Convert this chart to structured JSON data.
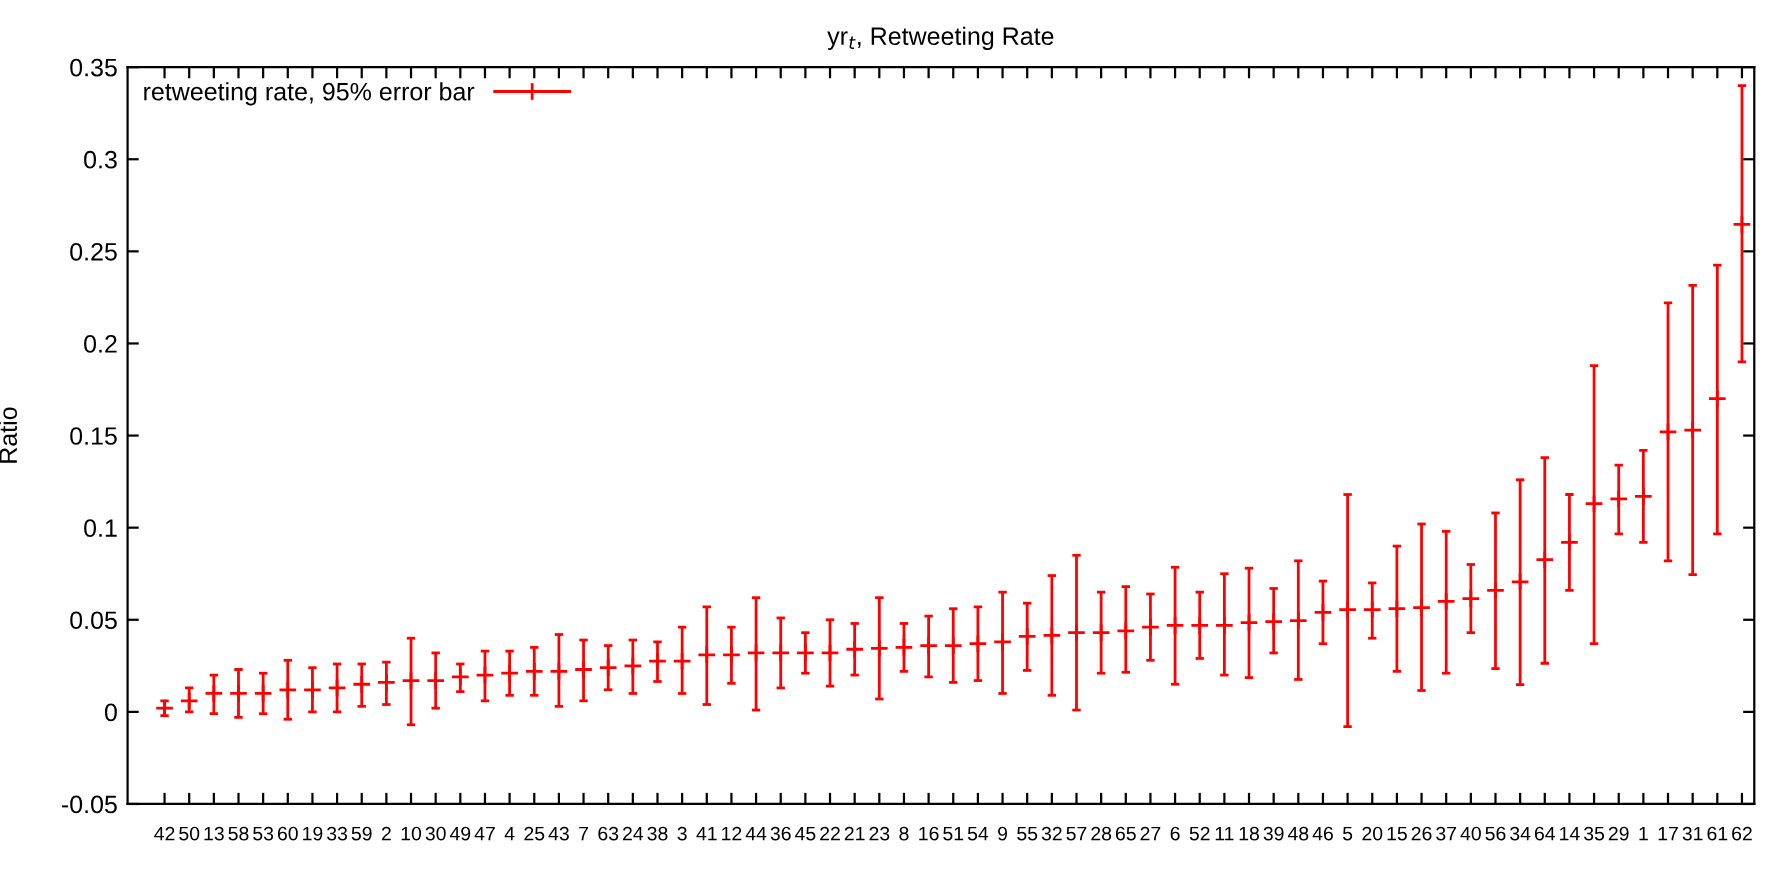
{
  "chart_data": {
    "type": "scatter",
    "title": "yr$_{t}$, Retweeting Rate",
    "ylabel": "Ratio",
    "categories": [
      "42",
      "50",
      "13",
      "58",
      "53",
      "60",
      "19",
      "33",
      "59",
      "2",
      "10",
      "30",
      "49",
      "47",
      "4",
      "25",
      "43",
      "7",
      "63",
      "24",
      "38",
      "3",
      "41",
      "12",
      "44",
      "36",
      "45",
      "22",
      "21",
      "23",
      "8",
      "16",
      "51",
      "54",
      "9",
      "55",
      "32",
      "57",
      "28",
      "65",
      "27",
      "6",
      "52",
      "11",
      "18",
      "39",
      "48",
      "46",
      "5",
      "20",
      "15",
      "26",
      "37",
      "40",
      "56",
      "34",
      "64",
      "14",
      "35",
      "29",
      "1",
      "17",
      "31",
      "61",
      "62"
    ],
    "series": [
      {
        "name": "retweeting rate, 95% error bar",
        "color": "#ff0000",
        "values": [
          0.002,
          0.006,
          0.01,
          0.01,
          0.01,
          0.012,
          0.012,
          0.013,
          0.015,
          0.016,
          0.017,
          0.017,
          0.019,
          0.02,
          0.021,
          0.022,
          0.022,
          0.023,
          0.024,
          0.025,
          0.0275,
          0.0275,
          0.031,
          0.031,
          0.032,
          0.032,
          0.032,
          0.032,
          0.034,
          0.0345,
          0.035,
          0.036,
          0.036,
          0.037,
          0.038,
          0.041,
          0.0415,
          0.043,
          0.043,
          0.044,
          0.046,
          0.047,
          0.047,
          0.047,
          0.0485,
          0.049,
          0.0495,
          0.054,
          0.0555,
          0.0555,
          0.056,
          0.0566,
          0.06,
          0.0615,
          0.066,
          0.0706,
          0.0826,
          0.092,
          0.113,
          0.1156,
          0.117,
          0.152,
          0.153,
          0.17,
          0.2646
        ],
        "errors": [
          [
            -0.002,
            0.006
          ],
          [
            0.0,
            0.013
          ],
          [
            -0.001,
            0.02
          ],
          [
            -0.003,
            0.023
          ],
          [
            -0.001,
            0.021
          ],
          [
            -0.004,
            0.028
          ],
          [
            0.0,
            0.024
          ],
          [
            0.0,
            0.026
          ],
          [
            0.003,
            0.026
          ],
          [
            0.004,
            0.027
          ],
          [
            -0.007,
            0.04
          ],
          [
            0.002,
            0.032
          ],
          [
            0.011,
            0.026
          ],
          [
            0.006,
            0.033
          ],
          [
            0.009,
            0.033
          ],
          [
            0.009,
            0.035
          ],
          [
            0.003,
            0.042
          ],
          [
            0.006,
            0.039
          ],
          [
            0.012,
            0.036
          ],
          [
            0.01,
            0.039
          ],
          [
            0.0165,
            0.038
          ],
          [
            0.01,
            0.046
          ],
          [
            0.004,
            0.057
          ],
          [
            0.0155,
            0.046
          ],
          [
            0.001,
            0.062
          ],
          [
            0.013,
            0.051
          ],
          [
            0.021,
            0.043
          ],
          [
            0.014,
            0.05
          ],
          [
            0.02,
            0.048
          ],
          [
            0.007,
            0.062
          ],
          [
            0.022,
            0.048
          ],
          [
            0.019,
            0.052
          ],
          [
            0.016,
            0.056
          ],
          [
            0.017,
            0.057
          ],
          [
            0.01,
            0.065
          ],
          [
            0.0225,
            0.059
          ],
          [
            0.009,
            0.074
          ],
          [
            0.001,
            0.085
          ],
          [
            0.021,
            0.065
          ],
          [
            0.0215,
            0.068
          ],
          [
            0.028,
            0.064
          ],
          [
            0.015,
            0.0785
          ],
          [
            0.029,
            0.065
          ],
          [
            0.02,
            0.075
          ],
          [
            0.0186,
            0.078
          ],
          [
            0.032,
            0.067
          ],
          [
            0.0176,
            0.082
          ],
          [
            0.037,
            0.071
          ],
          [
            -0.008,
            0.118
          ],
          [
            0.04,
            0.07
          ],
          [
            0.022,
            0.09
          ],
          [
            0.0116,
            0.102
          ],
          [
            0.021,
            0.098
          ],
          [
            0.043,
            0.08
          ],
          [
            0.0235,
            0.108
          ],
          [
            0.0148,
            0.126
          ],
          [
            0.0264,
            0.138
          ],
          [
            0.066,
            0.118
          ],
          [
            0.037,
            0.188
          ],
          [
            0.0966,
            0.134
          ],
          [
            0.092,
            0.142
          ],
          [
            0.082,
            0.222
          ],
          [
            0.0745,
            0.2315
          ],
          [
            0.0966,
            0.2425
          ],
          [
            0.19,
            0.34
          ]
        ]
      }
    ],
    "ylim": [
      -0.05,
      0.35
    ],
    "yticks": [
      -0.05,
      0,
      0.05,
      0.1,
      0.15,
      0.2,
      0.25,
      0.3,
      0.35
    ],
    "marker": "cross",
    "legend": "top left",
    "grid": false
  }
}
